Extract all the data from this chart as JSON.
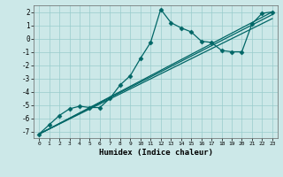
{
  "xlabel": "Humidex (Indice chaleur)",
  "background_color": "#cce8e8",
  "grid_color": "#99cccc",
  "line_color": "#006666",
  "xlim": [
    -0.5,
    23.5
  ],
  "ylim": [
    -7.5,
    2.5
  ],
  "xticks": [
    0,
    1,
    2,
    3,
    4,
    5,
    6,
    7,
    8,
    9,
    10,
    11,
    12,
    13,
    14,
    15,
    16,
    17,
    18,
    19,
    20,
    21,
    22,
    23
  ],
  "yticks": [
    -7,
    -6,
    -5,
    -4,
    -3,
    -2,
    -1,
    0,
    1,
    2
  ],
  "series": [
    {
      "x": [
        0,
        1,
        2,
        3,
        4,
        5,
        6,
        7,
        8,
        9,
        10,
        11,
        12,
        13,
        14,
        15,
        16,
        17,
        18,
        19,
        20,
        21,
        22,
        23
      ],
      "y": [
        -7.2,
        -6.5,
        -5.8,
        -5.3,
        -5.1,
        -5.2,
        -5.2,
        -4.5,
        -3.5,
        -2.8,
        -1.5,
        -0.3,
        2.2,
        1.2,
        0.8,
        0.5,
        -0.2,
        -0.3,
        -0.9,
        -1.0,
        -1.0,
        1.1,
        1.9,
        2.0
      ],
      "marker": "D",
      "markersize": 2.5,
      "linewidth": 0.9
    },
    {
      "x": [
        0,
        23
      ],
      "y": [
        -7.2,
        2.0
      ],
      "marker": null,
      "markersize": 0,
      "linewidth": 0.9
    },
    {
      "x": [
        0,
        23
      ],
      "y": [
        -7.2,
        1.8
      ],
      "marker": null,
      "markersize": 0,
      "linewidth": 0.9
    },
    {
      "x": [
        0,
        23
      ],
      "y": [
        -7.2,
        1.5
      ],
      "marker": null,
      "markersize": 0,
      "linewidth": 0.9
    }
  ]
}
